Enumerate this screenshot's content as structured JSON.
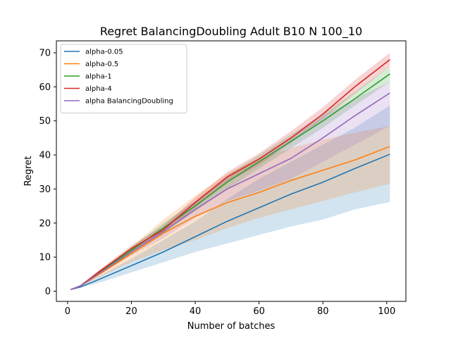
{
  "chart_data": {
    "type": "line",
    "title": "Regret BalancingDoubling Adult B10 N 100_10",
    "xlabel": "Number of batches",
    "ylabel": "Regret",
    "xlim": [
      -3.5,
      106
    ],
    "ylim": [
      -3,
      73.5
    ],
    "xticks": [
      0,
      20,
      40,
      60,
      80,
      100
    ],
    "yticks": [
      0,
      10,
      20,
      30,
      40,
      50,
      60,
      70
    ],
    "legend_position": "top-left",
    "grid": false,
    "x": [
      1,
      4,
      10,
      20,
      30,
      40,
      50,
      60,
      70,
      80,
      90,
      101
    ],
    "series": [
      {
        "name": "alpha-0.05",
        "color": "#1f77b4",
        "values": [
          0.5,
          1.2,
          3.5,
          7.5,
          11.5,
          16.0,
          20.5,
          24.5,
          28.5,
          32.0,
          36.0,
          40.2
        ],
        "lower": [
          0.5,
          1.0,
          2.5,
          5.5,
          8.5,
          11.5,
          14.0,
          16.5,
          19.0,
          21.0,
          24.0,
          26.2
        ],
        "upper": [
          0.6,
          1.5,
          4.5,
          9.5,
          15.0,
          20.5,
          27.0,
          33.0,
          38.0,
          43.0,
          48.0,
          54.5
        ]
      },
      {
        "name": "alpha-0.5",
        "color": "#ff7f0e",
        "values": [
          0.5,
          1.5,
          5.0,
          11.0,
          17.0,
          22.0,
          26.0,
          29.0,
          32.5,
          35.5,
          38.5,
          42.5
        ],
        "lower": [
          0.5,
          1.3,
          4.2,
          8.5,
          12.0,
          15.0,
          18.5,
          21.5,
          24.0,
          26.5,
          29.0,
          31.5
        ],
        "upper": [
          0.6,
          1.8,
          5.8,
          13.0,
          21.0,
          28.0,
          34.5,
          39.0,
          42.0,
          44.5,
          46.5,
          48.5
        ]
      },
      {
        "name": "alpha-1",
        "color": "#2ca02c",
        "values": [
          0.5,
          1.5,
          5.5,
          12.0,
          18.5,
          25.0,
          32.0,
          38.0,
          44.0,
          50.0,
          56.5,
          63.8
        ],
        "lower": [
          0.5,
          1.3,
          5.0,
          11.0,
          17.0,
          23.5,
          30.0,
          36.0,
          42.0,
          48.0,
          54.5,
          61.5
        ],
        "upper": [
          0.6,
          1.8,
          6.0,
          13.0,
          20.0,
          26.5,
          34.0,
          40.0,
          46.0,
          52.0,
          58.5,
          66.0
        ]
      },
      {
        "name": "alpha-4",
        "color": "#d62728",
        "values": [
          0.5,
          1.5,
          5.8,
          12.5,
          18.0,
          26.0,
          33.5,
          38.8,
          45.0,
          52.0,
          60.0,
          68.0
        ],
        "lower": [
          0.5,
          1.3,
          5.3,
          11.5,
          17.0,
          24.5,
          32.0,
          37.0,
          43.5,
          50.5,
          58.0,
          66.0
        ],
        "upper": [
          0.6,
          1.8,
          6.3,
          13.5,
          19.0,
          27.5,
          35.0,
          40.5,
          47.0,
          54.0,
          62.0,
          70.0
        ]
      },
      {
        "name": "alpha BalancingDoubling",
        "color": "#9467bd",
        "values": [
          0.5,
          1.5,
          5.3,
          11.5,
          17.5,
          24.0,
          30.0,
          34.5,
          39.0,
          45.0,
          51.5,
          58.2
        ],
        "lower": [
          0.5,
          1.3,
          4.8,
          10.5,
          15.5,
          21.5,
          26.5,
          29.5,
          33.0,
          38.0,
          43.0,
          48.5
        ],
        "upper": [
          0.6,
          1.8,
          5.8,
          12.5,
          19.5,
          26.5,
          33.5,
          38.5,
          45.0,
          51.5,
          56.5,
          61.5
        ]
      }
    ]
  }
}
